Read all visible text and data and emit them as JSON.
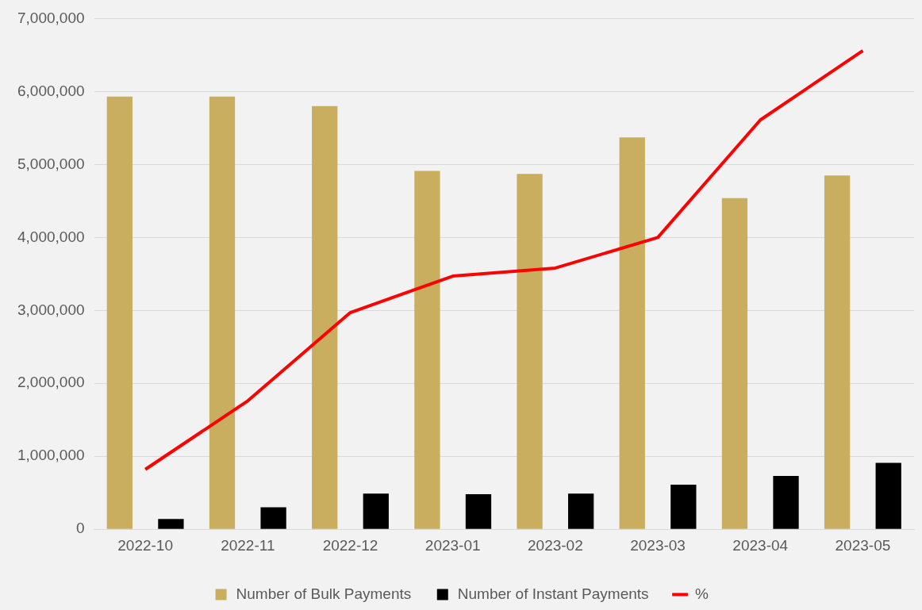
{
  "chart_data": {
    "type": "bar",
    "categories": [
      "2022-10",
      "2022-11",
      "2022-12",
      "2023-01",
      "2023-02",
      "2023-03",
      "2023-04",
      "2023-05"
    ],
    "series": [
      {
        "name": "Number of Bulk Payments",
        "color": "#c8ae5e",
        "values": [
          5930000,
          5930000,
          5800000,
          4910000,
          4870000,
          5370000,
          4540000,
          4850000
        ]
      },
      {
        "name": "Number of Instant Payments",
        "color": "#000000",
        "values": [
          140000,
          300000,
          490000,
          480000,
          490000,
          610000,
          730000,
          910000
        ]
      },
      {
        "name": "%",
        "type": "line",
        "color": "#ff0000",
        "values": [
          820000,
          1760000,
          2970000,
          3470000,
          3580000,
          4000000,
          5610000,
          6560000
        ]
      }
    ],
    "ylim": [
      0,
      7000000
    ],
    "yticks": [
      0,
      {
        "value": 1000000,
        "label": "1,000,000"
      },
      {
        "value": 2000000,
        "label": "2,000,000"
      },
      {
        "value": 3000000,
        "label": "3,000,000"
      },
      {
        "value": 4000000,
        "label": "4,000,000"
      },
      {
        "value": 5000000,
        "label": "5,000,000"
      },
      {
        "value": 6000000,
        "label": "6,000,000"
      },
      {
        "value": 7000000,
        "label": "7,000,000"
      }
    ],
    "grid": "y",
    "legend": "bottom"
  }
}
